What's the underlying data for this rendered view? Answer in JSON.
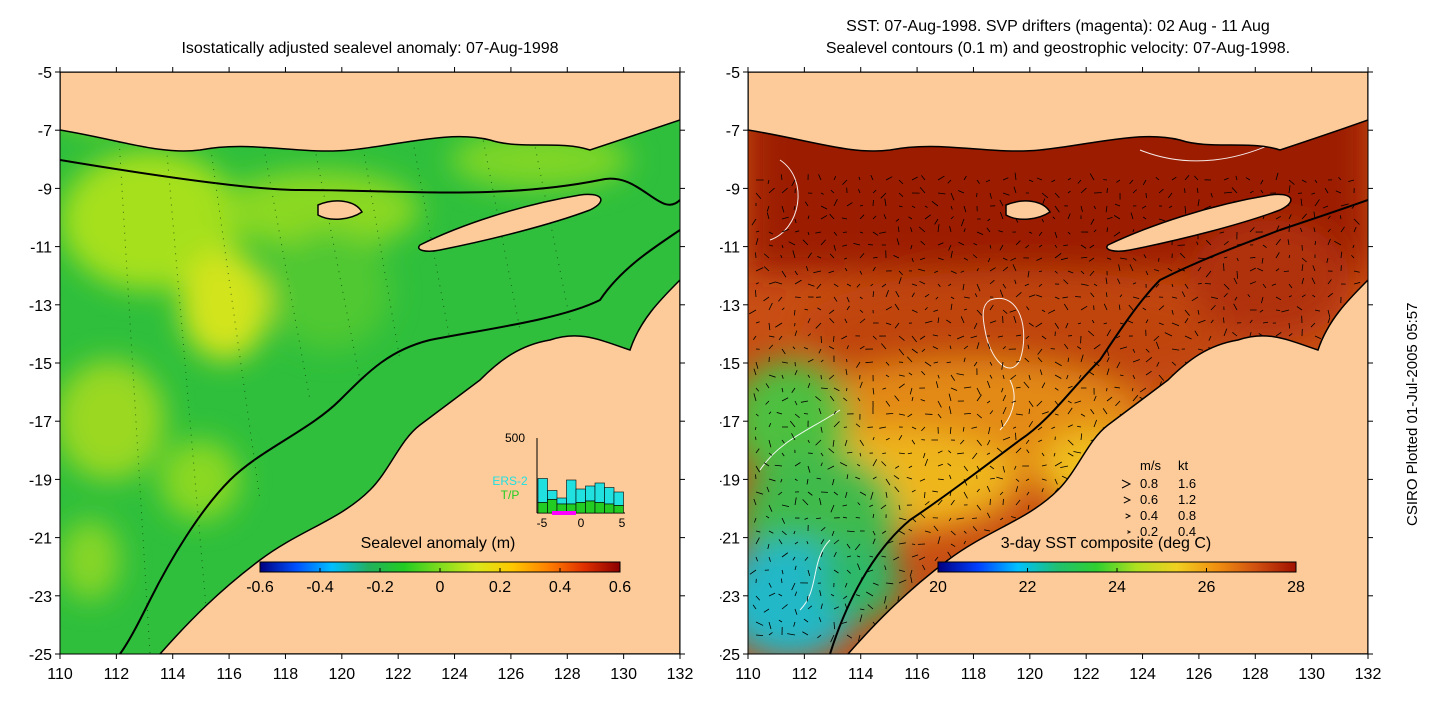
{
  "left_panel": {
    "title": "Isostatically adjusted sealevel anomaly: 07-Aug-1998",
    "colorbar_label": "Sealevel anomaly (m)",
    "colorbar_ticks": [
      "-0.6",
      "-0.4",
      "-0.2",
      "0",
      "0.2",
      "0.4",
      "0.6"
    ],
    "colormap": [
      "#00007f",
      "#0050ff",
      "#00bfff",
      "#22b060",
      "#22cc22",
      "#7fdc1e",
      "#d8e81a",
      "#ffc800",
      "#ff8000",
      "#e03000",
      "#8b0000"
    ],
    "land_color": "#fdcb9a",
    "sea_color": "#2fbf3c",
    "inset": {
      "max_label": "500",
      "series": [
        "ERS-2",
        "T/P"
      ],
      "series_colors": [
        "#20e0e0",
        "#22cc22"
      ],
      "x_ticks": [
        "-5",
        "0",
        "5"
      ],
      "ers2_counts": [
        230,
        150,
        100,
        220,
        160,
        180,
        200,
        170,
        140
      ],
      "tp_counts": [
        70,
        90,
        60,
        60,
        70,
        80,
        70,
        60,
        50
      ]
    }
  },
  "right_panel": {
    "title_line1": "SST: 07-Aug-1998. SVP drifters (magenta): 02 Aug - 11 Aug",
    "title_line2": "Sealevel contours (0.1 m) and geostrophic velocity: 07-Aug-1998.",
    "colorbar_label": "3-day SST composite (deg C)",
    "colorbar_ticks": [
      "20",
      "22",
      "24",
      "26",
      "28"
    ],
    "colormap": [
      "#000080",
      "#0040ff",
      "#00c0ff",
      "#20c070",
      "#30d030",
      "#b0e020",
      "#f0d020",
      "#f09010",
      "#d05010",
      "#a01000"
    ],
    "legend": {
      "header": [
        "m/s",
        "kt"
      ],
      "rows": [
        [
          "0.8",
          "1.6"
        ],
        [
          "0.6",
          "1.2"
        ],
        [
          "0.4",
          "0.8"
        ],
        [
          "0.2",
          "0.4"
        ]
      ]
    }
  },
  "axes": {
    "x_ticks": [
      "110",
      "112",
      "114",
      "116",
      "118",
      "120",
      "122",
      "124",
      "126",
      "128",
      "130",
      "132"
    ],
    "y_ticks": [
      "-5",
      "-7",
      "-9",
      "-11",
      "-13",
      "-15",
      "-17",
      "-19",
      "-21",
      "-23",
      "-25"
    ],
    "xlim": [
      110,
      132
    ],
    "ylim": [
      -25,
      -5
    ]
  },
  "credit": "CSIRO Plotted 01-Jul-2005 05:57"
}
